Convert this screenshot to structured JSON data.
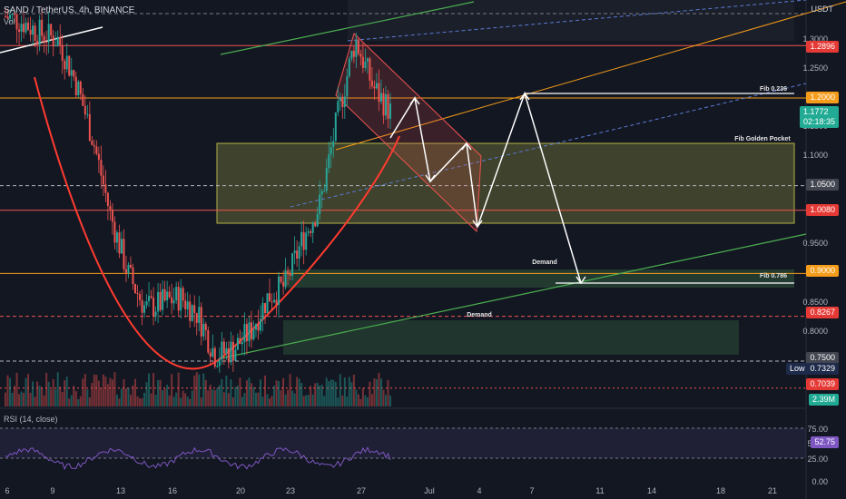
{
  "header": {
    "symbol": "SAND / TetherUS, 4h, BINANCE",
    "volume_label": "Vol",
    "currency": "USDT"
  },
  "rsi": {
    "title": "RSI (14, close)",
    "value": "52.75"
  },
  "annotations": {
    "fib_236": "Fib 0.236",
    "fib_golden_pocket": "Fib Golden Pocket",
    "demand_1": "Demand",
    "demand_2": "Demand",
    "fib_786": "Fib 0.786"
  },
  "price_tags": [
    {
      "label": "1.2896",
      "bg": "#e53935"
    },
    {
      "label": "1.2000",
      "bg": "#f59c1a"
    },
    {
      "label": "1.1772",
      "bg": "#22ab94",
      "sub": "02:18:35"
    },
    {
      "label": "1.0500",
      "bg": "#434651"
    },
    {
      "label": "1.0080",
      "bg": "#e53935"
    },
    {
      "label": "0.9000",
      "bg": "#f59c1a"
    },
    {
      "label": "0.8267",
      "bg": "#e53935"
    },
    {
      "label": "0.7500",
      "bg": "#434651"
    },
    {
      "label": "0.7329",
      "bg": "#1e2a4a",
      "prefix": "Low"
    },
    {
      "label": "0.7039",
      "bg": "#e53935"
    },
    {
      "label": "2.39M",
      "bg": "#22ab94"
    }
  ],
  "y_ticks": [
    "1.3000",
    "1.2500",
    "1.1500",
    "1.1000",
    "0.9500",
    "0.8500",
    "0.8000"
  ],
  "rsi_ticks": [
    "75.00",
    "50.00",
    "25.00",
    "0.00"
  ],
  "x_ticks": [
    "6",
    "9",
    "13",
    "16",
    "20",
    "23",
    "27",
    "Jul",
    "4",
    "7",
    "11",
    "14",
    "18",
    "21"
  ],
  "colors": {
    "up": "#26a69a",
    "down": "#ef5350",
    "fib": "#f59c1a",
    "zone_yellow": "#b5b347",
    "zone_green": "#3f7a4a",
    "rsi": "#7e57c2"
  },
  "chart_data": {
    "type": "line",
    "description_series": "SAND/USDT 4h close price (approximate)",
    "x": [
      "Jun 6",
      "Jun 7",
      "Jun 8",
      "Jun 9",
      "Jun 10",
      "Jun 11",
      "Jun 12",
      "Jun 13",
      "Jun 14",
      "Jun 15",
      "Jun 16",
      "Jun 17",
      "Jun 18",
      "Jun 19",
      "Jun 20",
      "Jun 21",
      "Jun 22",
      "Jun 23",
      "Jun 24",
      "Jun 25",
      "Jun 26",
      "Jun 27",
      "Jun 28"
    ],
    "series": [
      {
        "values": [
          1.34,
          1.33,
          1.31,
          1.3,
          1.23,
          1.13,
          1.0,
          0.9,
          0.84,
          0.85,
          0.86,
          0.83,
          0.76,
          0.77,
          0.8,
          0.86,
          0.88,
          0.96,
          1.02,
          1.17,
          1.3,
          1.22,
          1.177
        ]
      }
    ],
    "ylim": [
      0.7,
      1.33
    ],
    "levels": [
      1.2896,
      1.2,
      1.05,
      1.008,
      0.9,
      0.8267,
      0.75
    ],
    "current_price": 1.1772,
    "low": 0.7329,
    "rsi_value": 52.75,
    "rsi_ylim": [
      0,
      100
    ]
  }
}
